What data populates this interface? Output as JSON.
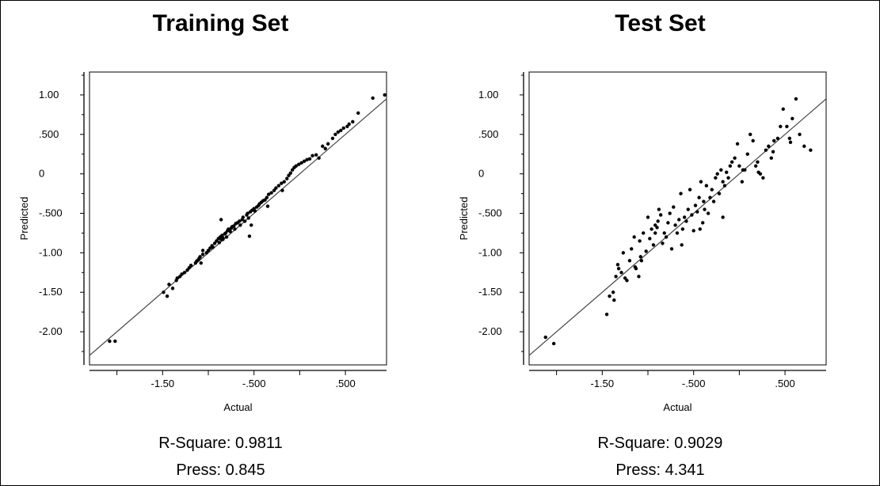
{
  "chart_data": [
    {
      "type": "scatter",
      "title": "Training Set",
      "xlabel": "Actual",
      "ylabel": "Predicted",
      "xlim": [
        -2.3,
        0.95
      ],
      "ylim": [
        -2.42,
        1.29
      ],
      "x_ticks": [
        -1.5,
        -0.5,
        0.5
      ],
      "x_tick_labels": [
        "-1.50",
        "-.500",
        ".500"
      ],
      "y_ticks": [
        1.0,
        0.5,
        0,
        -0.5,
        -1.0,
        -1.5,
        -2.0
      ],
      "y_tick_labels": [
        "1.00",
        ".500",
        "0",
        "-.500",
        "-1.00",
        "-1.50",
        "-2.00"
      ],
      "reference_line": "y = x",
      "grid": false,
      "stats": {
        "r_square": "R-Square: 0.9811",
        "press": "Press: 0.845"
      },
      "x": [
        -2.08,
        -2.02,
        -1.49,
        -1.45,
        -1.43,
        -1.39,
        -1.35,
        -1.34,
        -1.31,
        -1.29,
        -1.26,
        -1.23,
        -1.21,
        -1.19,
        -1.14,
        -1.13,
        -1.12,
        -1.11,
        -1.1,
        -1.09,
        -1.08,
        -1.06,
        -1.02,
        -1.0,
        -0.98,
        -0.96,
        -0.95,
        -0.93,
        -0.91,
        -0.89,
        -0.88,
        -0.87,
        -0.86,
        -0.85,
        -0.84,
        -0.82,
        -0.81,
        -0.8,
        -0.79,
        -0.78,
        -0.76,
        -0.75,
        -0.74,
        -0.72,
        -0.71,
        -0.7,
        -0.68,
        -0.66,
        -0.65,
        -0.63,
        -0.62,
        -0.6,
        -0.58,
        -0.57,
        -0.56,
        -0.54,
        -0.52,
        -0.5,
        -0.49,
        -0.47,
        -0.45,
        -0.44,
        -0.42,
        -0.4,
        -0.38,
        -0.36,
        -0.34,
        -0.31,
        -0.28,
        -0.26,
        -0.23,
        -0.2,
        -0.17,
        -0.14,
        -0.12,
        -0.1,
        -0.08,
        -0.06,
        -0.04,
        -0.01,
        0.02,
        0.05,
        0.08,
        0.11,
        0.14,
        0.18,
        0.21,
        0.25,
        0.28,
        0.31,
        0.36,
        0.39,
        0.42,
        0.45,
        0.48,
        0.52,
        0.54,
        0.58,
        0.64,
        0.8,
        0.93,
        -1.06,
        -0.86,
        -0.84,
        -0.55,
        -0.53,
        -0.35,
        -0.19
      ],
      "y": [
        -2.12,
        -2.12,
        -1.5,
        -1.55,
        -1.4,
        -1.45,
        -1.35,
        -1.32,
        -1.3,
        -1.27,
        -1.25,
        -1.22,
        -1.19,
        -1.16,
        -1.13,
        -1.11,
        -1.1,
        -1.09,
        -1.07,
        -1.05,
        -1.13,
        -1.02,
        -1.0,
        -0.97,
        -0.94,
        -0.91,
        -0.93,
        -0.88,
        -0.85,
        -0.82,
        -0.87,
        -0.8,
        -0.83,
        -0.78,
        -0.81,
        -0.76,
        -0.75,
        -0.8,
        -0.72,
        -0.7,
        -0.73,
        -0.69,
        -0.67,
        -0.66,
        -0.7,
        -0.63,
        -0.62,
        -0.6,
        -0.65,
        -0.58,
        -0.55,
        -0.6,
        -0.52,
        -0.5,
        -0.56,
        -0.48,
        -0.46,
        -0.44,
        -0.47,
        -0.42,
        -0.4,
        -0.38,
        -0.36,
        -0.34,
        -0.33,
        -0.3,
        -0.26,
        -0.24,
        -0.21,
        -0.18,
        -0.15,
        -0.12,
        -0.1,
        -0.06,
        -0.02,
        0.01,
        0.05,
        0.08,
        0.1,
        0.12,
        0.14,
        0.16,
        0.18,
        0.19,
        0.23,
        0.24,
        0.2,
        0.35,
        0.32,
        0.38,
        0.45,
        0.5,
        0.53,
        0.55,
        0.58,
        0.6,
        0.63,
        0.66,
        0.77,
        0.96,
        1.0,
        -0.97,
        -0.58,
        -0.83,
        -0.79,
        -0.65,
        -0.41,
        -0.21
      ]
    },
    {
      "type": "scatter",
      "title": "Test Set",
      "xlabel": "Actual",
      "ylabel": "Predicted",
      "xlim": [
        -2.3,
        0.95
      ],
      "ylim": [
        -2.42,
        1.29
      ],
      "x_ticks": [
        -1.5,
        -0.5,
        0.5
      ],
      "x_tick_labels": [
        "-1.50",
        "-.500",
        ".500"
      ],
      "y_ticks": [
        1.0,
        0.5,
        0,
        -0.5,
        -1.0,
        -1.5,
        -2.0
      ],
      "y_tick_labels": [
        "1.00",
        ".500",
        "0",
        "-.500",
        "-1.00",
        "-1.50",
        "-2.00"
      ],
      "reference_line": "y = x",
      "grid": false,
      "stats": {
        "r_square": "R-Square: 0.9029",
        "press": "Press: 4.341"
      },
      "x": [
        -2.12,
        -2.03,
        -1.45,
        -1.42,
        -1.38,
        -1.35,
        -1.33,
        -1.32,
        -1.29,
        -1.27,
        -1.25,
        -1.23,
        -1.2,
        -1.18,
        -1.15,
        -1.14,
        -1.13,
        -1.1,
        -1.09,
        -1.07,
        -1.05,
        -1.02,
        -1.0,
        -0.98,
        -0.96,
        -0.94,
        -0.92,
        -0.9,
        -0.89,
        -0.88,
        -0.86,
        -0.84,
        -0.82,
        -0.8,
        -0.78,
        -0.76,
        -0.74,
        -0.72,
        -0.7,
        -0.68,
        -0.66,
        -0.64,
        -0.62,
        -0.6,
        -0.58,
        -0.56,
        -0.54,
        -0.52,
        -0.5,
        -0.48,
        -0.46,
        -0.44,
        -0.42,
        -0.4,
        -0.38,
        -0.36,
        -0.34,
        -0.32,
        -0.3,
        -0.28,
        -0.26,
        -0.24,
        -0.22,
        -0.2,
        -0.18,
        -0.16,
        -0.14,
        -0.12,
        -0.1,
        -0.08,
        -0.05,
        -0.02,
        0.0,
        0.03,
        0.06,
        0.09,
        0.12,
        0.15,
        0.18,
        0.2,
        0.23,
        0.26,
        0.29,
        0.32,
        0.35,
        0.38,
        0.42,
        0.45,
        0.48,
        0.52,
        0.55,
        0.58,
        0.62,
        0.66,
        0.71,
        0.78,
        -1.37,
        -1.08,
        -0.92,
        -0.63,
        -0.43,
        -0.39,
        -0.18,
        0.04,
        0.21,
        0.37,
        0.56
      ],
      "y": [
        -2.07,
        -2.15,
        -1.78,
        -1.55,
        -1.5,
        -1.3,
        -1.15,
        -1.2,
        -1.25,
        -1.0,
        -1.32,
        -1.35,
        -1.1,
        -0.95,
        -0.8,
        -1.18,
        -1.2,
        -1.3,
        -0.85,
        -1.1,
        -0.75,
        -0.98,
        -0.55,
        -0.82,
        -0.7,
        -0.9,
        -0.75,
        -0.68,
        -0.6,
        -0.45,
        -0.52,
        -0.88,
        -0.75,
        -0.8,
        -0.62,
        -0.5,
        -0.95,
        -0.42,
        -0.65,
        -0.75,
        -0.58,
        -0.25,
        -0.7,
        -0.55,
        -0.6,
        -0.45,
        -0.2,
        -0.52,
        -0.72,
        -0.4,
        -0.48,
        -0.3,
        -0.1,
        -0.62,
        -0.45,
        -0.15,
        -0.5,
        -0.3,
        -0.2,
        -0.35,
        -0.05,
        0.0,
        -0.25,
        0.05,
        -0.1,
        -0.15,
        0.02,
        -0.05,
        0.1,
        0.15,
        0.2,
        0.38,
        0.1,
        -0.1,
        0.05,
        0.25,
        0.5,
        0.42,
        0.1,
        0.15,
        0.0,
        -0.05,
        0.3,
        0.35,
        0.2,
        0.42,
        0.45,
        0.6,
        0.82,
        0.6,
        0.45,
        0.7,
        0.95,
        0.5,
        0.35,
        0.3,
        -1.6,
        -1.05,
        -0.65,
        -0.9,
        -0.7,
        -0.35,
        -0.55,
        0.05,
        0.02,
        0.28,
        0.4
      ]
    }
  ]
}
